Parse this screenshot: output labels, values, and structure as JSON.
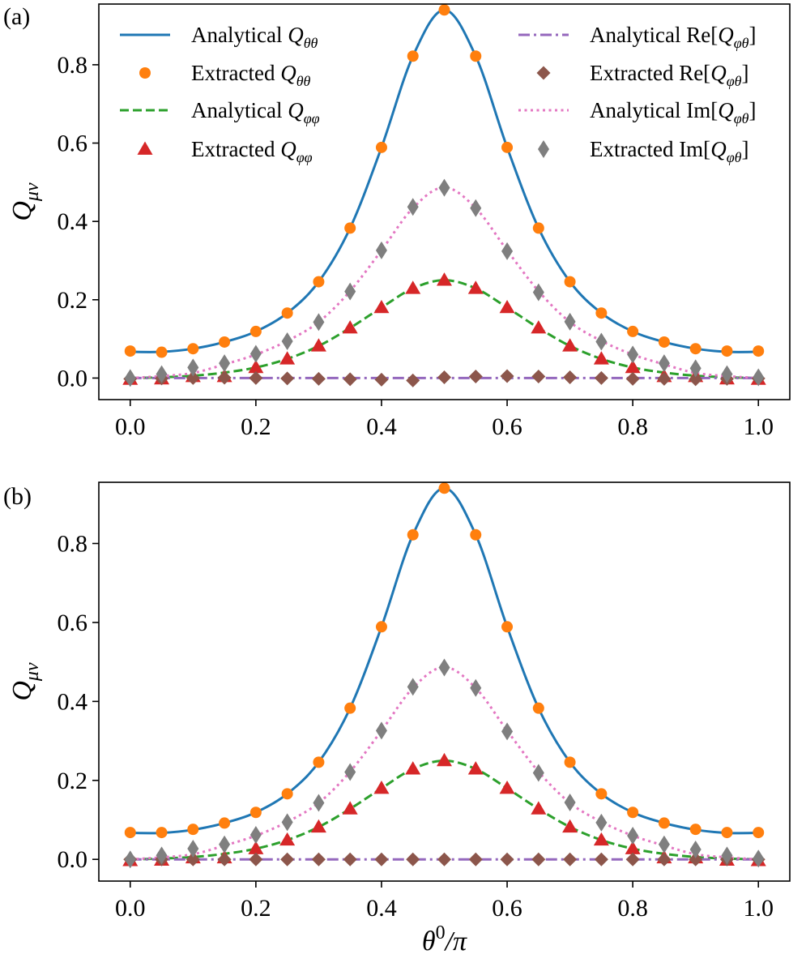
{
  "chart_data": [
    {
      "type": "line",
      "panel_label": "(a)",
      "ylabel": "Q_{μν}",
      "ylabel_main": "Q",
      "ylabel_sub": "μν",
      "xlabel": "",
      "xlim": [
        -0.05,
        1.05
      ],
      "ylim": [
        -0.055,
        0.955
      ],
      "xticks": [
        0.0,
        0.2,
        0.4,
        0.6,
        0.8,
        1.0
      ],
      "xtick_labels": [
        "0.0",
        "0.2",
        "0.4",
        "0.6",
        "0.8",
        "1.0"
      ],
      "yticks": [
        0.0,
        0.2,
        0.4,
        0.6,
        0.8
      ],
      "ytick_labels": [
        "0.0",
        "0.2",
        "0.4",
        "0.6",
        "0.8"
      ],
      "legend_position": "top",
      "x": [
        0.0,
        0.05,
        0.1,
        0.15,
        0.2,
        0.25,
        0.3,
        0.35,
        0.4,
        0.45,
        0.5,
        0.55,
        0.6,
        0.65,
        0.7,
        0.75,
        0.8,
        0.85,
        0.9,
        0.95,
        1.0
      ],
      "series": [
        {
          "name": "Analytical Q_θθ",
          "label_prefix": "Analytical ",
          "label_math": "Q",
          "label_sub": "θθ",
          "label_wrap": "",
          "style": "line-solid",
          "color": "#1f77b4",
          "values": [
            0.067,
            0.067,
            0.075,
            0.092,
            0.119,
            0.166,
            0.246,
            0.383,
            0.589,
            0.822,
            0.94,
            0.822,
            0.589,
            0.383,
            0.246,
            0.166,
            0.119,
            0.092,
            0.075,
            0.067,
            0.067
          ]
        },
        {
          "name": "Extracted Q_θθ",
          "label_prefix": "Extracted ",
          "label_math": "Q",
          "label_sub": "θθ",
          "label_wrap": "",
          "style": "circle",
          "color": "#ff7f0e",
          "values": [
            0.069,
            0.066,
            0.075,
            0.092,
            0.119,
            0.166,
            0.246,
            0.383,
            0.589,
            0.822,
            0.94,
            0.822,
            0.589,
            0.383,
            0.246,
            0.166,
            0.119,
            0.092,
            0.075,
            0.069,
            0.069
          ]
        },
        {
          "name": "Analytical Q_φφ",
          "label_prefix": "Analytical ",
          "label_math": "Q",
          "label_sub": "φφ",
          "label_wrap": "",
          "style": "line-dashed",
          "color": "#2ca02c",
          "values": [
            0.0,
            0.002,
            0.006,
            0.014,
            0.027,
            0.049,
            0.082,
            0.128,
            0.18,
            0.229,
            0.25,
            0.229,
            0.18,
            0.128,
            0.082,
            0.049,
            0.027,
            0.014,
            0.006,
            0.002,
            0.0
          ]
        },
        {
          "name": "Extracted Q_φφ",
          "label_prefix": "Extracted ",
          "label_math": "Q",
          "label_sub": "φφ",
          "label_wrap": "",
          "style": "triangle",
          "color": "#d62728",
          "values": [
            -0.003,
            -0.002,
            0.004,
            0.004,
            0.027,
            0.049,
            0.082,
            0.128,
            0.18,
            0.229,
            0.25,
            0.229,
            0.18,
            0.128,
            0.082,
            0.049,
            0.027,
            0.004,
            0.004,
            -0.002,
            -0.003
          ]
        },
        {
          "name": "Analytical Re[Q_φθ]",
          "label_prefix": "Analytical Re[",
          "label_math": "Q",
          "label_sub": "φθ",
          "label_wrap": "]",
          "style": "line-dashdot",
          "color": "#9467bd",
          "values": [
            0.0,
            0.0,
            0.0,
            0.0,
            0.0,
            0.0,
            0.0,
            0.0,
            0.0,
            0.0,
            0.0,
            0.0,
            0.0,
            0.0,
            0.0,
            0.0,
            0.0,
            0.0,
            0.0,
            0.0,
            0.0
          ]
        },
        {
          "name": "Extracted Re[Q_φθ]",
          "label_prefix": "Extracted Re[",
          "label_math": "Q",
          "label_sub": "φθ",
          "label_wrap": "]",
          "style": "diamond-small",
          "color": "#8c564b",
          "values": [
            -0.002,
            -0.001,
            0.0,
            0.001,
            0.0,
            -0.001,
            -0.002,
            -0.003,
            -0.004,
            -0.006,
            0.002,
            0.004,
            0.005,
            0.004,
            0.002,
            0.0,
            -0.002,
            -0.002,
            -0.003,
            -0.002,
            -0.001
          ]
        },
        {
          "name": "Analytical Im[Q_φθ]",
          "label_prefix": "Analytical Im[",
          "label_math": "Q",
          "label_sub": "φθ",
          "label_wrap": "]",
          "style": "line-dotted",
          "color": "#e377c2",
          "values": [
            0.0,
            0.005,
            0.013,
            0.035,
            0.06,
            0.095,
            0.143,
            0.222,
            0.326,
            0.434,
            0.487,
            0.434,
            0.326,
            0.222,
            0.143,
            0.095,
            0.06,
            0.035,
            0.013,
            0.005,
            0.0
          ]
        },
        {
          "name": "Extracted Im[Q_φθ]",
          "label_prefix": "Extracted Im[",
          "label_math": "Q",
          "label_sub": "φθ",
          "label_wrap": "]",
          "style": "diamond-thin",
          "color": "#7f7f7f",
          "values": [
            0.0,
            0.01,
            0.027,
            0.038,
            0.062,
            0.094,
            0.143,
            0.221,
            0.326,
            0.437,
            0.486,
            0.434,
            0.324,
            0.219,
            0.144,
            0.093,
            0.06,
            0.038,
            0.025,
            0.01,
            0.002
          ]
        }
      ]
    },
    {
      "type": "line",
      "panel_label": "(b)",
      "ylabel": "Q_{μν}",
      "ylabel_main": "Q",
      "ylabel_sub": "μν",
      "xlabel": "θ^0/π",
      "xlabel_base": "θ",
      "xlabel_sup": "0",
      "xlabel_rest": "/π",
      "xlim": [
        -0.05,
        1.05
      ],
      "ylim": [
        -0.055,
        0.955
      ],
      "xticks": [
        0.0,
        0.2,
        0.4,
        0.6,
        0.8,
        1.0
      ],
      "xtick_labels": [
        "0.0",
        "0.2",
        "0.4",
        "0.6",
        "0.8",
        "1.0"
      ],
      "yticks": [
        0.0,
        0.2,
        0.4,
        0.6,
        0.8
      ],
      "ytick_labels": [
        "0.0",
        "0.2",
        "0.4",
        "0.6",
        "0.8"
      ],
      "x": [
        0.0,
        0.05,
        0.1,
        0.15,
        0.2,
        0.25,
        0.3,
        0.35,
        0.4,
        0.45,
        0.5,
        0.55,
        0.6,
        0.65,
        0.7,
        0.75,
        0.8,
        0.85,
        0.9,
        0.95,
        1.0
      ],
      "series": [
        {
          "name": "Analytical Q_θθ",
          "style": "line-solid",
          "color": "#1f77b4",
          "values": [
            0.067,
            0.067,
            0.075,
            0.092,
            0.119,
            0.166,
            0.246,
            0.383,
            0.589,
            0.822,
            0.94,
            0.822,
            0.589,
            0.383,
            0.246,
            0.166,
            0.119,
            0.092,
            0.075,
            0.067,
            0.067
          ]
        },
        {
          "name": "Extracted Q_θθ",
          "style": "circle",
          "color": "#ff7f0e",
          "values": [
            0.068,
            0.068,
            0.076,
            0.092,
            0.119,
            0.166,
            0.246,
            0.383,
            0.589,
            0.822,
            0.94,
            0.822,
            0.589,
            0.383,
            0.246,
            0.166,
            0.119,
            0.092,
            0.076,
            0.068,
            0.068
          ]
        },
        {
          "name": "Analytical Q_φφ",
          "style": "line-dashed",
          "color": "#2ca02c",
          "values": [
            0.0,
            0.002,
            0.006,
            0.014,
            0.027,
            0.049,
            0.082,
            0.128,
            0.18,
            0.229,
            0.25,
            0.229,
            0.18,
            0.128,
            0.082,
            0.049,
            0.027,
            0.014,
            0.006,
            0.002,
            0.0
          ]
        },
        {
          "name": "Extracted Q_φφ",
          "style": "triangle",
          "color": "#d62728",
          "values": [
            -0.003,
            -0.002,
            0.004,
            0.004,
            0.027,
            0.049,
            0.082,
            0.128,
            0.18,
            0.229,
            0.25,
            0.229,
            0.18,
            0.128,
            0.082,
            0.049,
            0.027,
            0.004,
            0.004,
            -0.002,
            -0.003
          ]
        },
        {
          "name": "Analytical Re[Q_φθ]",
          "style": "line-dashdot",
          "color": "#9467bd",
          "values": [
            0.0,
            0.0,
            0.0,
            0.0,
            0.0,
            0.0,
            0.0,
            0.0,
            0.0,
            0.0,
            0.0,
            0.0,
            0.0,
            0.0,
            0.0,
            0.0,
            0.0,
            0.0,
            0.0,
            0.0,
            0.0
          ]
        },
        {
          "name": "Extracted Re[Q_φθ]",
          "style": "diamond-small",
          "color": "#8c564b",
          "values": [
            0.0,
            0.0,
            0.0,
            0.0,
            0.0,
            0.0,
            0.0,
            0.0,
            0.0,
            0.0,
            0.0,
            0.0,
            0.0,
            0.0,
            0.0,
            0.0,
            0.0,
            0.0,
            0.0,
            0.0,
            0.0
          ]
        },
        {
          "name": "Analytical Im[Q_φθ]",
          "style": "line-dotted",
          "color": "#e377c2",
          "values": [
            0.0,
            0.005,
            0.013,
            0.035,
            0.06,
            0.095,
            0.143,
            0.222,
            0.326,
            0.434,
            0.487,
            0.434,
            0.326,
            0.222,
            0.143,
            0.095,
            0.06,
            0.035,
            0.013,
            0.005,
            0.0
          ]
        },
        {
          "name": "Extracted Im[Q_φθ]",
          "style": "diamond-thin",
          "color": "#7f7f7f",
          "values": [
            0.0,
            0.01,
            0.027,
            0.038,
            0.062,
            0.094,
            0.143,
            0.221,
            0.326,
            0.437,
            0.486,
            0.434,
            0.324,
            0.219,
            0.144,
            0.093,
            0.06,
            0.038,
            0.025,
            0.01,
            0.002
          ]
        }
      ]
    }
  ]
}
